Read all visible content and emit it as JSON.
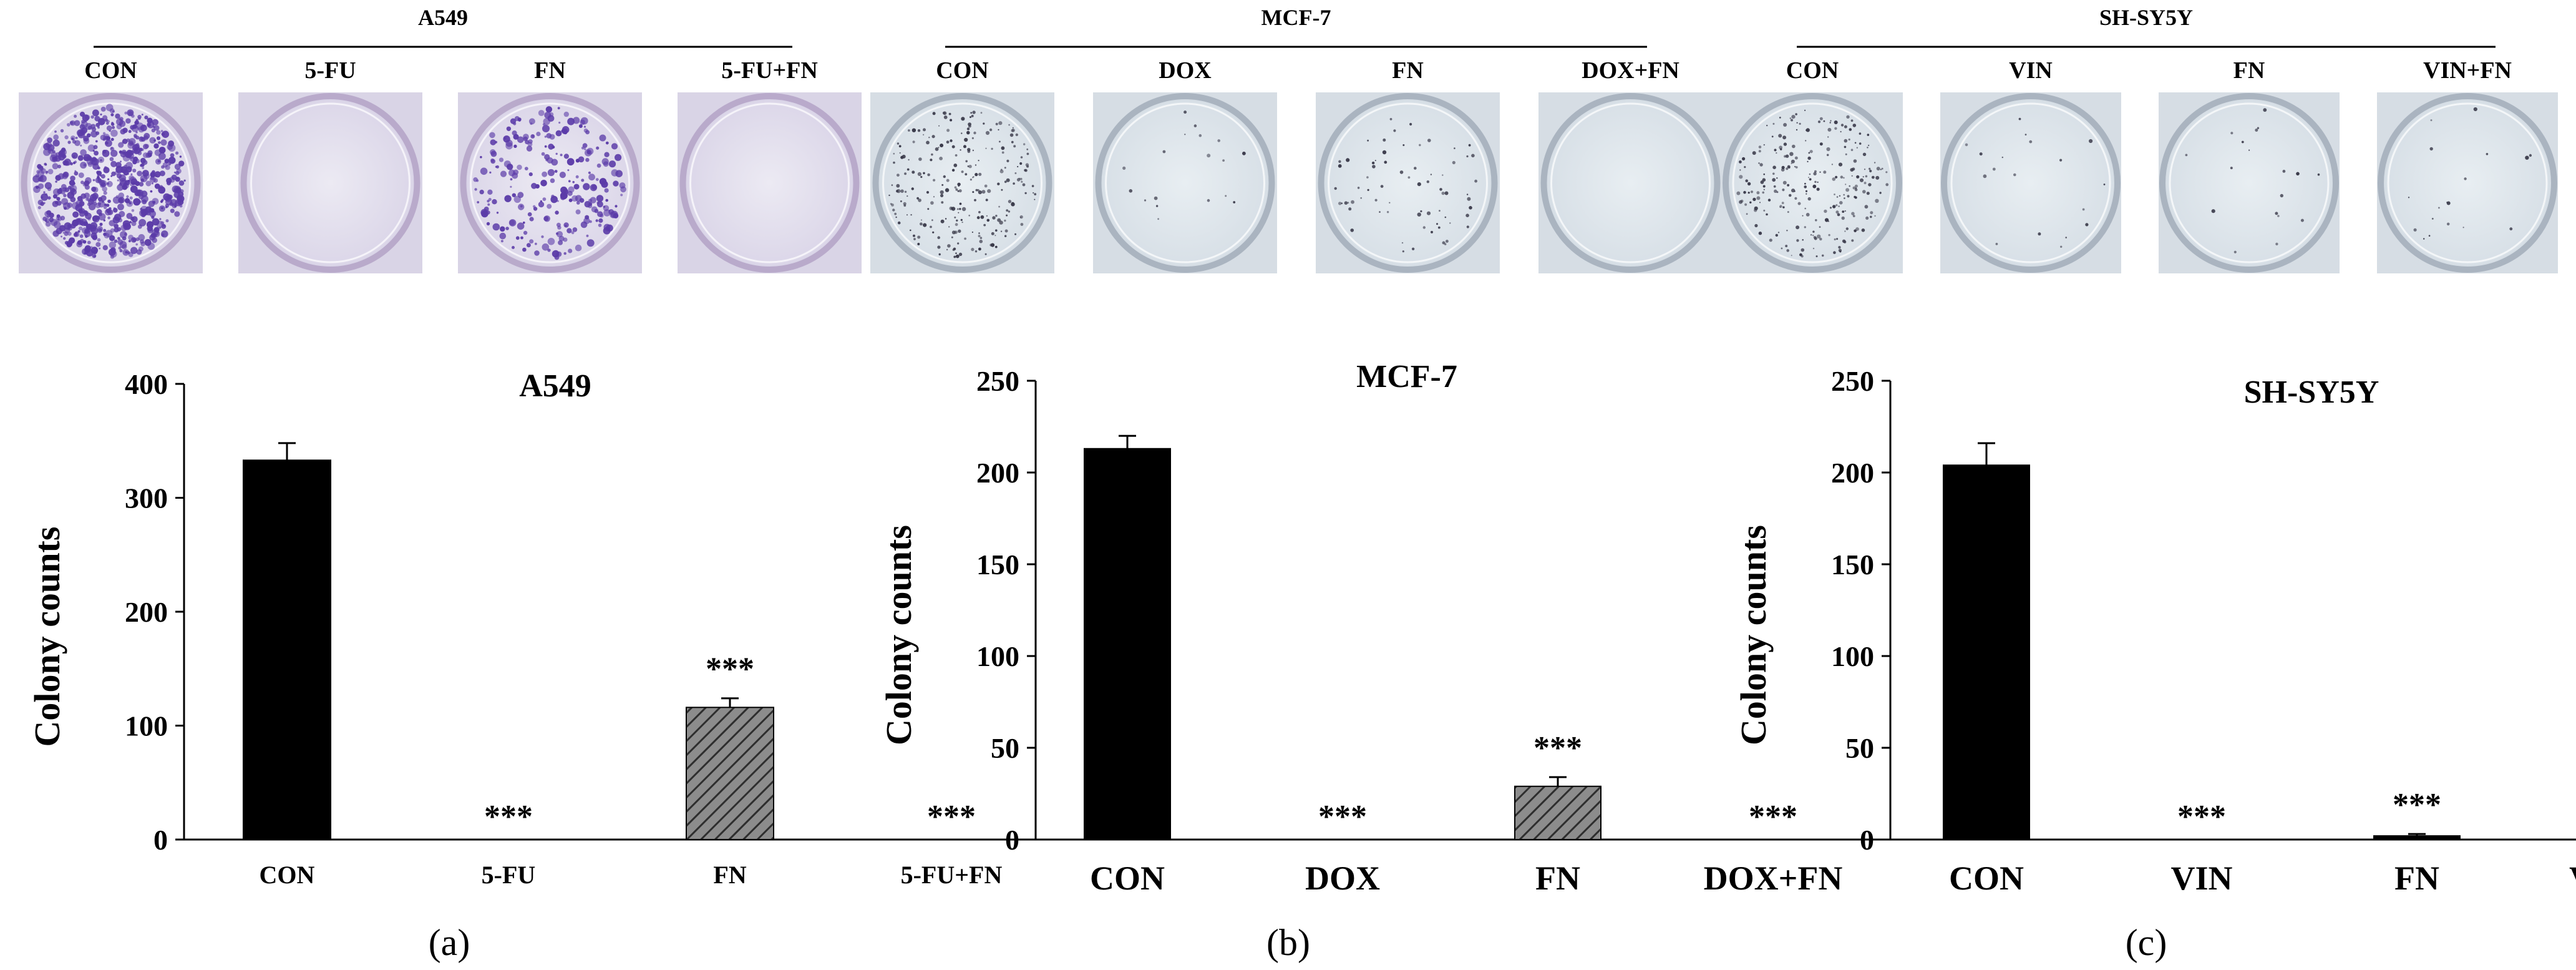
{
  "plate_panels": [
    {
      "group_label": "A549",
      "style": "purple",
      "plates": [
        {
          "label": "CON",
          "density": "high"
        },
        {
          "label": "5-FU",
          "density": "none"
        },
        {
          "label": "FN",
          "density": "medium"
        },
        {
          "label": "5-FU+FN",
          "density": "none"
        }
      ]
    },
    {
      "group_label": "MCF-7",
      "style": "gray",
      "plates": [
        {
          "label": "CON",
          "density": "medium"
        },
        {
          "label": "DOX",
          "density": "trace"
        },
        {
          "label": "FN",
          "density": "low"
        },
        {
          "label": "DOX+FN",
          "density": "none"
        }
      ]
    },
    {
      "group_label": "SH-SY5Y",
      "style": "gray",
      "plates": [
        {
          "label": "CON",
          "density": "medium"
        },
        {
          "label": "VIN",
          "density": "trace"
        },
        {
          "label": "FN",
          "density": "trace"
        },
        {
          "label": "VIN+FN",
          "density": "trace"
        }
      ]
    }
  ],
  "colors": {
    "bar_solid": "#000000",
    "bar_hatch": "#888888",
    "plate_purple_bg": "#e4e1ee",
    "plate_gray_bg": "#dfe6ec",
    "colony_purple": "#5b3ba8",
    "colony_gray": "#3a3a4a"
  },
  "chart_data": [
    {
      "type": "bar",
      "panel_label": "(a)",
      "title": "A549",
      "ylabel": "Colony counts",
      "xlabel": "",
      "ylim": [
        0,
        400
      ],
      "yticks": [
        0,
        100,
        200,
        300,
        400
      ],
      "categories": [
        "CON",
        "5-FU",
        "FN",
        "5-FU+FN"
      ],
      "values": [
        333,
        0,
        116,
        0
      ],
      "errors": [
        15,
        0,
        8,
        0
      ],
      "fills": [
        "solid",
        "solid",
        "hatch",
        "solid"
      ],
      "significance": [
        "",
        "***",
        "***",
        "***"
      ],
      "grid": false
    },
    {
      "type": "bar",
      "panel_label": "(b)",
      "title": "MCF-7",
      "ylabel": "Colony counts",
      "xlabel": "",
      "ylim": [
        0,
        250
      ],
      "yticks": [
        0,
        50,
        100,
        150,
        200,
        250
      ],
      "categories": [
        "CON",
        "DOX",
        "FN",
        "DOX+FN"
      ],
      "values": [
        213,
        0,
        29,
        0
      ],
      "errors": [
        7,
        0,
        5,
        0
      ],
      "fills": [
        "solid",
        "solid",
        "hatch",
        "solid"
      ],
      "significance": [
        "",
        "***",
        "***",
        "***"
      ],
      "grid": false
    },
    {
      "type": "bar",
      "panel_label": "(c)",
      "title": "SH-SY5Y",
      "ylabel": "Colony counts",
      "xlabel": "",
      "ylim": [
        0,
        250
      ],
      "yticks": [
        0,
        50,
        100,
        150,
        200,
        250
      ],
      "categories": [
        "CON",
        "VIN",
        "FN",
        "VIN+FN"
      ],
      "values": [
        204,
        0,
        2,
        0
      ],
      "errors": [
        12,
        0,
        1,
        0
      ],
      "fills": [
        "solid",
        "solid",
        "solid",
        "solid"
      ],
      "significance": [
        "",
        "***",
        "***",
        "***"
      ],
      "grid": false
    }
  ]
}
